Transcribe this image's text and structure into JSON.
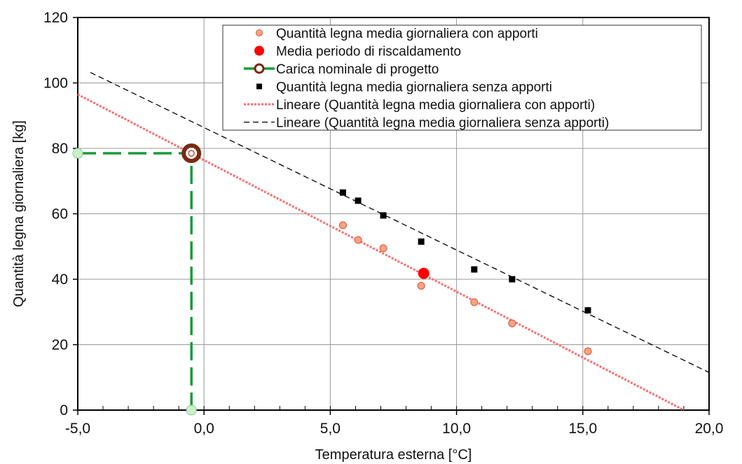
{
  "chart_data": {
    "type": "scatter",
    "xlabel": "Temperatura esterna [°C]",
    "ylabel": "Quantità legna giornaliera [kg]",
    "xlim": [
      -5,
      20
    ],
    "ylim": [
      0,
      120
    ],
    "x_ticks": [
      -5,
      0,
      5,
      10,
      15,
      20
    ],
    "x_tick_labels": [
      "-5,0",
      "0,0",
      "5,0",
      "10,0",
      "15,0",
      "20,0"
    ],
    "y_ticks": [
      0,
      20,
      40,
      60,
      80,
      100,
      120
    ],
    "y_tick_labels": [
      "0",
      "20",
      "40",
      "60",
      "80",
      "100",
      "120"
    ],
    "grid": true,
    "legend_position": "top-right",
    "series": [
      {
        "name": "Quantità legna media giornaliera con apporti",
        "kind": "points",
        "marker": "circle",
        "color": "#f4a582",
        "edge": "#e0503a",
        "x": [
          5.5,
          6.1,
          7.1,
          8.6,
          10.7,
          12.2,
          15.2
        ],
        "y": [
          56.5,
          52.0,
          49.5,
          38.0,
          33.0,
          26.5,
          18.0
        ]
      },
      {
        "name": "Media periodo di riscaldamento",
        "kind": "points",
        "marker": "circle-large",
        "color": "#ff0000",
        "x": [
          8.7
        ],
        "y": [
          41.8
        ]
      },
      {
        "name": "Carica nominale di progetto",
        "kind": "projection",
        "marker": "ring",
        "color": "#1a9a3a",
        "ring_color": "#7a2a12",
        "x": [
          -0.5
        ],
        "y": [
          78.5
        ]
      },
      {
        "name": "Quantità legna media giornaliera senza apporti",
        "kind": "points",
        "marker": "square",
        "color": "#000000",
        "x": [
          5.5,
          6.1,
          7.1,
          8.6,
          10.7,
          12.2,
          15.2
        ],
        "y": [
          66.5,
          64.0,
          59.5,
          51.5,
          43.0,
          40.0,
          30.5
        ]
      },
      {
        "name": "Lineare (Quantità legna media giornaliera con apporti)",
        "kind": "trendline",
        "style": "dotted-thick",
        "color": "#ff6b6b",
        "x": [
          -5,
          19.0
        ],
        "y": [
          96.5,
          0
        ]
      },
      {
        "name": "Lineare (Quantità legna media giornaliera senza apporti)",
        "kind": "trendline",
        "style": "dashed",
        "color": "#000000",
        "x": [
          -4.5,
          20
        ],
        "y": [
          103.2,
          11.5
        ]
      }
    ]
  }
}
